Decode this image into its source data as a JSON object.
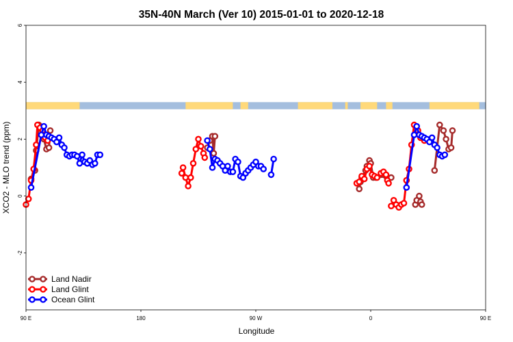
{
  "chart_data": {
    "type": "line",
    "title": "35N-40N March (Ver 10)   2015-01-01 to 2020-12-18",
    "xlabel": "Longitude",
    "ylabel": "XCO2 - MLO trend (ppm)",
    "xlim": [
      90,
      450
    ],
    "ylim": [
      -4,
      6
    ],
    "x_ticks": [
      {
        "value": 90,
        "label": "90 E"
      },
      {
        "value": 180,
        "label": "180"
      },
      {
        "value": 270,
        "label": "90 W"
      },
      {
        "value": 360,
        "label": "0"
      },
      {
        "value": 450,
        "label": "90 E"
      }
    ],
    "y_ticks": [
      {
        "value": -2,
        "label": "-2"
      },
      {
        "value": 0,
        "label": "0"
      },
      {
        "value": 2,
        "label": "2"
      },
      {
        "value": 4,
        "label": "4"
      },
      {
        "value": 6,
        "label": "6"
      }
    ],
    "legend_position": "bottom-left",
    "land_mask": {
      "y_range": [
        3.05,
        3.3
      ],
      "land_color": "#FFD97A",
      "ocean_color": "#A4BEDE",
      "land_spans": [
        [
          90,
          132
        ],
        [
          215,
          252
        ],
        [
          258,
          264
        ],
        [
          303,
          330
        ],
        [
          340,
          342
        ],
        [
          352,
          365
        ],
        [
          372,
          377
        ],
        [
          406,
          445
        ]
      ]
    },
    "series": [
      {
        "name": "Land Nadir",
        "color": "#A52A2A",
        "segments": [
          [
            [
              94,
              0.6
            ],
            [
              97,
              0.9
            ],
            [
              98,
              1.6
            ],
            [
              100,
              2.5
            ],
            [
              102,
              2.35
            ],
            [
              104,
              2.0
            ],
            [
              106,
              1.65
            ],
            [
              108,
              1.7
            ],
            [
              109,
              2.3
            ]
          ],
          [
            [
              232,
              1.7
            ],
            [
              234,
              1.95
            ],
            [
              236,
              2.1
            ],
            [
              237,
              1.5
            ],
            [
              238,
              2.1
            ]
          ],
          [
            [
              351,
              0.25
            ],
            [
              352,
              0.5
            ],
            [
              353,
              0.65
            ],
            [
              356,
              0.9
            ],
            [
              357,
              1.05
            ],
            [
              359,
              1.25
            ],
            [
              360,
              1.15
            ],
            [
              362,
              0.65
            ],
            [
              364,
              0.65
            ],
            [
              368,
              0.75
            ],
            [
              370,
              0.75
            ],
            [
              372,
              0.7
            ],
            [
              376,
              0.65
            ]
          ],
          [
            [
              395,
              -0.3
            ],
            [
              396,
              -0.15
            ],
            [
              398,
              0.0
            ],
            [
              399,
              -0.2
            ],
            [
              400,
              -0.3
            ]
          ],
          [
            [
              410,
              0.9
            ],
            [
              414,
              2.5
            ],
            [
              417,
              2.3
            ],
            [
              419,
              2.0
            ],
            [
              421,
              1.65
            ],
            [
              423,
              1.7
            ],
            [
              424,
              2.3
            ]
          ]
        ]
      },
      {
        "name": "Land Glint",
        "color": "#FF0000",
        "segments": [
          [
            [
              90,
              -0.3
            ],
            [
              92,
              -0.1
            ],
            [
              94,
              0.55
            ],
            [
              96,
              0.95
            ],
            [
              98,
              1.8
            ],
            [
              99,
              2.5
            ],
            [
              101,
              2.4
            ],
            [
              103,
              2.3
            ],
            [
              105,
              2.05
            ],
            [
              107,
              1.95
            ]
          ],
          [
            [
              212,
              0.8
            ],
            [
              213,
              1.0
            ],
            [
              215,
              0.65
            ],
            [
              217,
              0.35
            ],
            [
              219,
              0.65
            ],
            [
              221,
              1.15
            ],
            [
              223,
              1.65
            ],
            [
              225,
              2.0
            ],
            [
              227,
              1.75
            ],
            [
              229,
              1.5
            ],
            [
              230,
              1.35
            ]
          ],
          [
            [
              349,
              0.45
            ],
            [
              351,
              0.5
            ],
            [
              353,
              0.7
            ],
            [
              355,
              0.6
            ],
            [
              357,
              0.95
            ],
            [
              359,
              1.05
            ],
            [
              361,
              0.75
            ],
            [
              363,
              0.7
            ],
            [
              365,
              0.65
            ],
            [
              368,
              0.8
            ],
            [
              370,
              0.85
            ],
            [
              372,
              0.75
            ],
            [
              373,
              0.55
            ],
            [
              374,
              0.45
            ]
          ],
          [
            [
              376,
              -0.35
            ],
            [
              378,
              -0.15
            ],
            [
              380,
              -0.3
            ],
            [
              382,
              -0.4
            ],
            [
              384,
              -0.3
            ],
            [
              386,
              -0.25
            ],
            [
              388,
              0.55
            ],
            [
              390,
              0.95
            ],
            [
              392,
              1.8
            ],
            [
              394,
              2.5
            ],
            [
              397,
              2.3
            ],
            [
              399,
              2.05
            ],
            [
              402,
              1.95
            ]
          ]
        ]
      },
      {
        "name": "Ocean Glint",
        "color": "#0000FF",
        "segments": [
          [
            [
              94,
              0.3
            ],
            [
              102,
              2.15
            ],
            [
              104,
              2.45
            ],
            [
              106,
              2.15
            ],
            [
              108,
              2.1
            ],
            [
              110,
              2.05
            ],
            [
              112,
              2.0
            ],
            [
              114,
              1.9
            ],
            [
              116,
              2.05
            ],
            [
              118,
              1.8
            ],
            [
              120,
              1.7
            ],
            [
              122,
              1.45
            ],
            [
              124,
              1.4
            ],
            [
              126,
              1.45
            ],
            [
              128,
              1.45
            ],
            [
              130,
              1.4
            ],
            [
              132,
              1.15
            ],
            [
              134,
              1.45
            ],
            [
              136,
              1.2
            ],
            [
              138,
              1.15
            ],
            [
              140,
              1.25
            ],
            [
              142,
              1.1
            ],
            [
              144,
              1.15
            ],
            [
              146,
              1.45
            ],
            [
              148,
              1.45
            ]
          ],
          [
            [
              232,
              1.95
            ],
            [
              234,
              1.65
            ],
            [
              236,
              1.0
            ],
            [
              238,
              1.3
            ],
            [
              240,
              1.25
            ],
            [
              242,
              1.15
            ],
            [
              244,
              1.05
            ],
            [
              246,
              0.9
            ],
            [
              248,
              1.05
            ],
            [
              250,
              0.85
            ],
            [
              252,
              0.85
            ],
            [
              254,
              1.3
            ],
            [
              256,
              1.2
            ],
            [
              258,
              0.7
            ],
            [
              260,
              0.65
            ],
            [
              262,
              0.8
            ],
            [
              264,
              0.9
            ],
            [
              266,
              1.0
            ],
            [
              268,
              1.1
            ],
            [
              270,
              1.2
            ],
            [
              272,
              1.05
            ],
            [
              274,
              1.05
            ],
            [
              276,
              0.95
            ]
          ],
          [
            [
              282,
              0.75
            ],
            [
              284,
              1.3
            ]
          ],
          [
            [
              388,
              0.3
            ],
            [
              394,
              2.15
            ],
            [
              396,
              2.45
            ],
            [
              398,
              2.15
            ],
            [
              400,
              2.1
            ],
            [
              402,
              2.05
            ],
            [
              404,
              2.0
            ],
            [
              406,
              1.9
            ],
            [
              408,
              2.05
            ],
            [
              410,
              1.8
            ],
            [
              412,
              1.7
            ],
            [
              414,
              1.45
            ],
            [
              416,
              1.4
            ],
            [
              418,
              1.45
            ]
          ]
        ]
      }
    ]
  }
}
